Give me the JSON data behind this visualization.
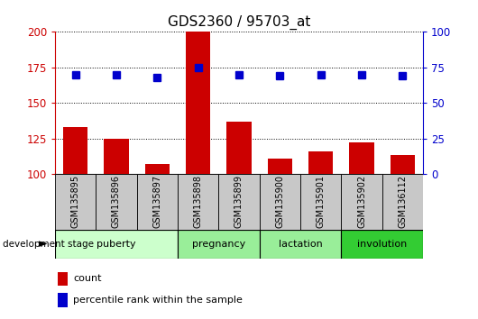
{
  "title": "GDS2360 / 95703_at",
  "samples": [
    "GSM135895",
    "GSM135896",
    "GSM135897",
    "GSM135898",
    "GSM135899",
    "GSM135900",
    "GSM135901",
    "GSM135902",
    "GSM136112"
  ],
  "count_values": [
    133,
    125,
    107,
    200,
    137,
    111,
    116,
    122,
    113
  ],
  "percentile_values": [
    70,
    70,
    68,
    75,
    70,
    69,
    70,
    70,
    69
  ],
  "stages": [
    {
      "label": "puberty",
      "start": 0,
      "end": 3,
      "color": "#ccffcc"
    },
    {
      "label": "pregnancy",
      "start": 3,
      "end": 5,
      "color": "#99ee99"
    },
    {
      "label": "lactation",
      "start": 5,
      "end": 7,
      "color": "#99ee99"
    },
    {
      "label": "involution",
      "start": 7,
      "end": 9,
      "color": "#33cc33"
    }
  ],
  "ylim_left": [
    100,
    200
  ],
  "ylim_right": [
    0,
    100
  ],
  "yticks_left": [
    100,
    125,
    150,
    175,
    200
  ],
  "yticks_right": [
    0,
    25,
    50,
    75,
    100
  ],
  "bar_color": "#cc0000",
  "dot_color": "#0000cc",
  "axis_color_left": "#cc0000",
  "axis_color_right": "#0000cc",
  "sample_box_color": "#c8c8c8",
  "bar_width": 0.6
}
